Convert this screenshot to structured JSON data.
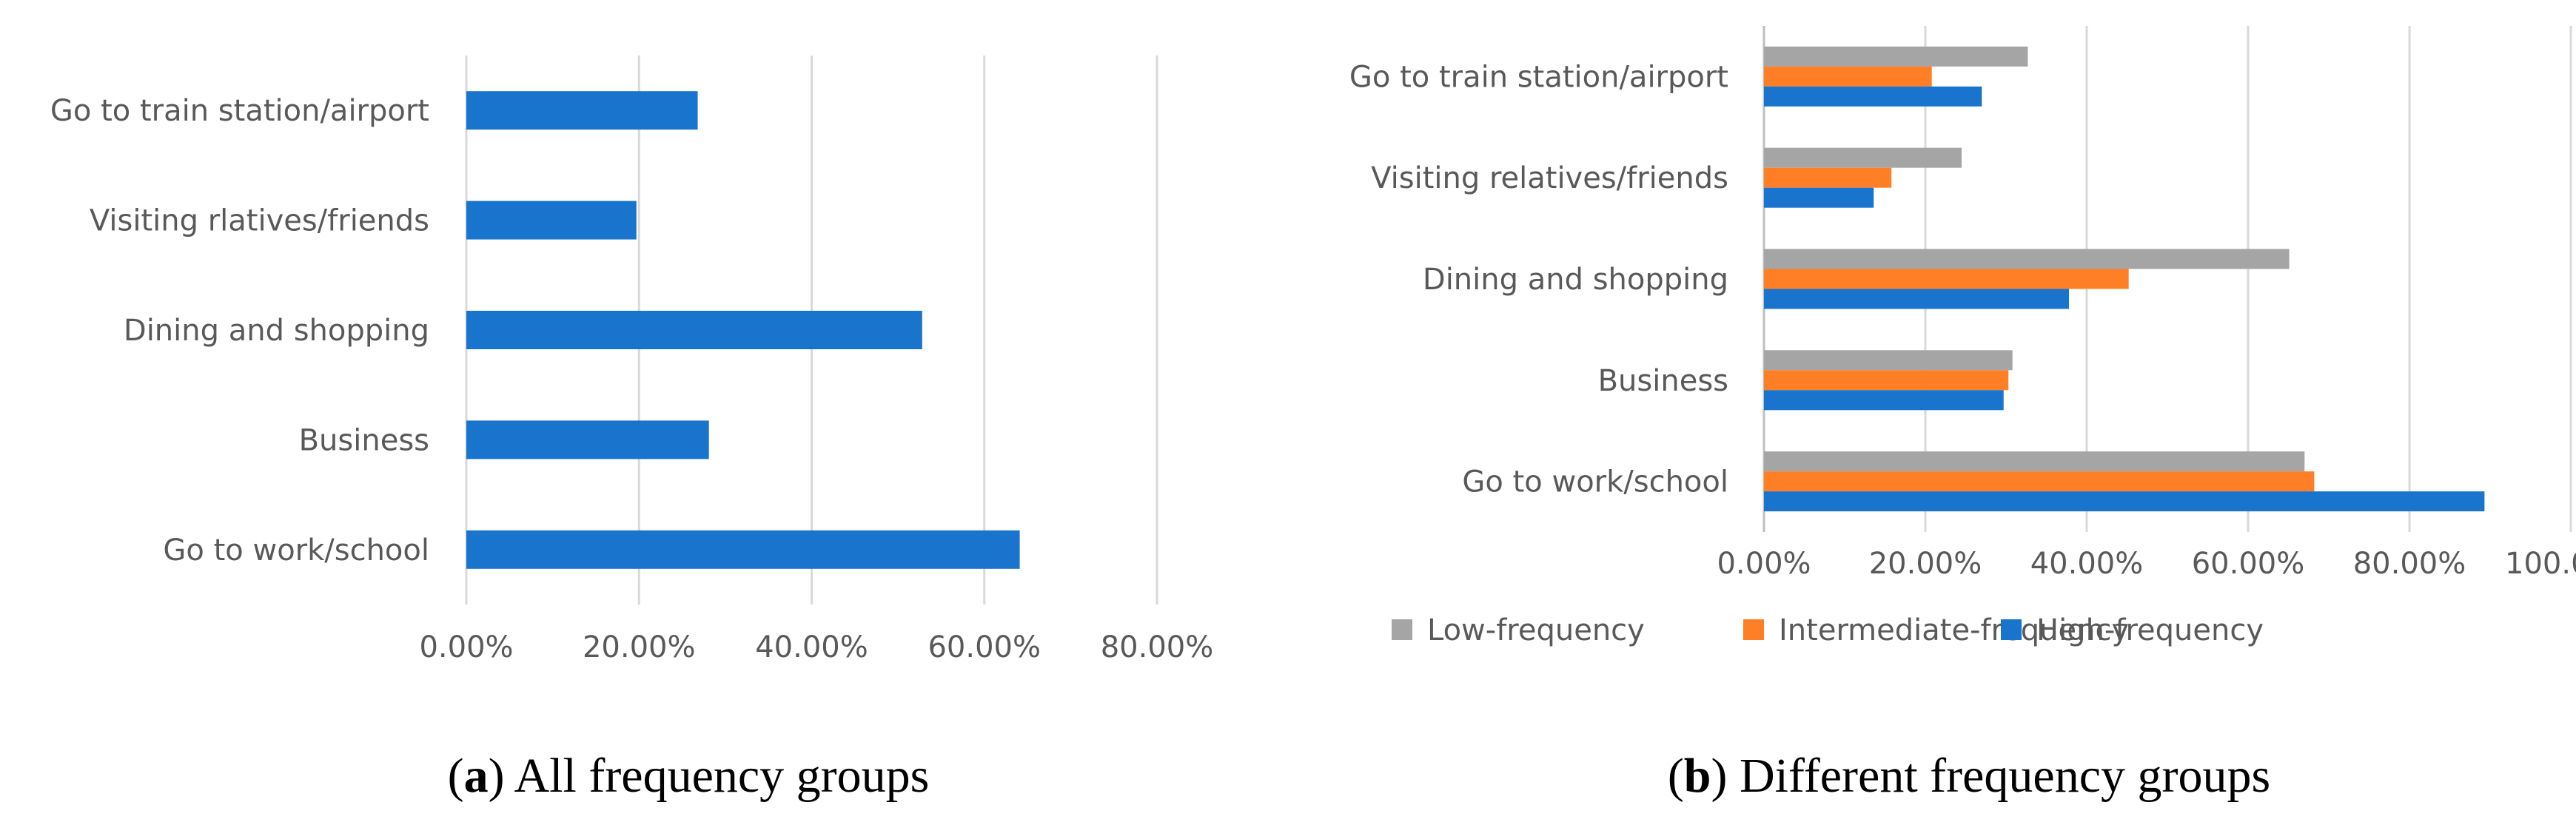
{
  "chart_data": [
    {
      "type": "bar",
      "orientation": "horizontal",
      "categories": [
        "Go to train station/airport",
        "Visiting rlatives/friends",
        "Dining and shopping",
        "Business",
        "Go to work/school"
      ],
      "values": [
        26.8,
        19.7,
        52.8,
        28.1,
        64.1
      ],
      "xlim": [
        0,
        80
      ],
      "xticks": [
        "0.00%",
        "20.00%",
        "40.00%",
        "60.00%",
        "80.00%"
      ],
      "grid": true,
      "legend": "none",
      "color": "#1874CD",
      "caption_letter": "a",
      "caption_text": " All frequency groups"
    },
    {
      "type": "bar",
      "orientation": "horizontal",
      "categories": [
        "Go to train station/airport",
        "Visiting relatives/friends",
        "Dining and shopping",
        "Business",
        "Go to work/school"
      ],
      "series": [
        {
          "name": "Low-frequency",
          "color": "#A5A5A5",
          "values": [
            32.7,
            24.5,
            65.1,
            30.8,
            67.0
          ]
        },
        {
          "name": "Intermediate-frequency",
          "color": "#FF7F27",
          "values": [
            20.8,
            15.8,
            45.2,
            30.3,
            68.2
          ]
        },
        {
          "name": "High-frequency",
          "color": "#1874CD",
          "values": [
            27.0,
            13.6,
            37.8,
            29.7,
            89.3
          ]
        }
      ],
      "xlim": [
        0,
        100
      ],
      "xticks": [
        "0.00%",
        "20.00%",
        "40.00%",
        "60.00%",
        "80.00%",
        "100.00%"
      ],
      "grid": true,
      "legend": "bottom",
      "caption_letter": "b",
      "caption_text": " Different frequency groups"
    }
  ]
}
